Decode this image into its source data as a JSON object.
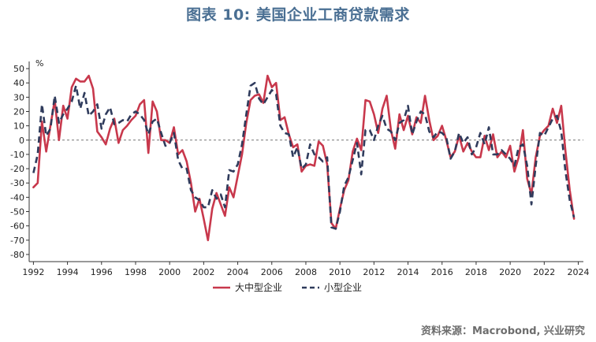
{
  "title": "图表 10: 美国企业工商贷款需求",
  "source": "资料来源：Macrobond, 兴业研究",
  "chart_data": {
    "type": "line",
    "title": "图表 10: 美国企业工商贷款需求",
    "ylabel": "%",
    "ylim": [
      -85,
      55
    ],
    "yticks": [
      50,
      40,
      30,
      20,
      10,
      0,
      -10,
      -20,
      -30,
      -40,
      -50,
      -60,
      -70,
      -80
    ],
    "xlim": [
      1991.75,
      2024.3
    ],
    "xticks": [
      1992,
      1994,
      1996,
      1998,
      2000,
      2002,
      2004,
      2006,
      2008,
      2010,
      2012,
      2014,
      2016,
      2018,
      2020,
      2022,
      2024
    ],
    "zero_line": true,
    "legend_position": "bottom-center",
    "series": [
      {
        "name": "大中型企业",
        "color": "#c8384c",
        "style": "solid",
        "points": [
          [
            1992.0,
            -33
          ],
          [
            1992.25,
            -30
          ],
          [
            1992.5,
            13
          ],
          [
            1992.75,
            -8
          ],
          [
            1993.0,
            10
          ],
          [
            1993.25,
            28
          ],
          [
            1993.5,
            0
          ],
          [
            1993.75,
            24
          ],
          [
            1994.0,
            15
          ],
          [
            1994.25,
            37
          ],
          [
            1994.5,
            43
          ],
          [
            1994.75,
            41
          ],
          [
            1995.0,
            41
          ],
          [
            1995.25,
            45
          ],
          [
            1995.5,
            36
          ],
          [
            1995.75,
            6
          ],
          [
            1996.0,
            2
          ],
          [
            1996.25,
            -3
          ],
          [
            1996.5,
            8
          ],
          [
            1996.75,
            15
          ],
          [
            1997.0,
            -2
          ],
          [
            1997.25,
            7
          ],
          [
            1997.5,
            10
          ],
          [
            1997.75,
            14
          ],
          [
            1998.0,
            17
          ],
          [
            1998.25,
            25
          ],
          [
            1998.5,
            28
          ],
          [
            1998.75,
            -9
          ],
          [
            1999.0,
            27
          ],
          [
            1999.25,
            20
          ],
          [
            1999.5,
            0
          ],
          [
            1999.75,
            0
          ],
          [
            2000.0,
            -2
          ],
          [
            2000.25,
            9
          ],
          [
            2000.5,
            -10
          ],
          [
            2000.75,
            -7
          ],
          [
            2001.0,
            -15
          ],
          [
            2001.25,
            -30
          ],
          [
            2001.5,
            -50
          ],
          [
            2001.75,
            -41
          ],
          [
            2002.0,
            -55
          ],
          [
            2002.25,
            -70
          ],
          [
            2002.5,
            -48
          ],
          [
            2002.75,
            -37
          ],
          [
            2003.0,
            -45
          ],
          [
            2003.25,
            -53
          ],
          [
            2003.5,
            -33
          ],
          [
            2003.75,
            -40
          ],
          [
            2004.0,
            -25
          ],
          [
            2004.25,
            -10
          ],
          [
            2004.5,
            12
          ],
          [
            2004.75,
            28
          ],
          [
            2005.0,
            31
          ],
          [
            2005.25,
            32
          ],
          [
            2005.5,
            26
          ],
          [
            2005.75,
            45
          ],
          [
            2006.0,
            37
          ],
          [
            2006.25,
            40
          ],
          [
            2006.5,
            14
          ],
          [
            2006.75,
            16
          ],
          [
            2007.0,
            4
          ],
          [
            2007.25,
            -5
          ],
          [
            2007.5,
            -3
          ],
          [
            2007.75,
            -22
          ],
          [
            2008.0,
            -18
          ],
          [
            2008.25,
            -17
          ],
          [
            2008.5,
            -18
          ],
          [
            2008.75,
            -1
          ],
          [
            2009.0,
            -4
          ],
          [
            2009.25,
            -17
          ],
          [
            2009.5,
            -58
          ],
          [
            2009.75,
            -62
          ],
          [
            2010.0,
            -48
          ],
          [
            2010.25,
            -35
          ],
          [
            2010.5,
            -28
          ],
          [
            2010.75,
            -8
          ],
          [
            2011.0,
            1
          ],
          [
            2011.25,
            -7
          ],
          [
            2011.5,
            28
          ],
          [
            2011.75,
            27
          ],
          [
            2012.0,
            18
          ],
          [
            2012.25,
            5
          ],
          [
            2012.5,
            22
          ],
          [
            2012.75,
            31
          ],
          [
            2013.0,
            7
          ],
          [
            2013.25,
            -6
          ],
          [
            2013.5,
            18
          ],
          [
            2013.75,
            7
          ],
          [
            2014.0,
            17
          ],
          [
            2014.25,
            4
          ],
          [
            2014.5,
            16
          ],
          [
            2014.75,
            12
          ],
          [
            2015.0,
            31
          ],
          [
            2015.25,
            14
          ],
          [
            2015.5,
            0
          ],
          [
            2015.75,
            3
          ],
          [
            2016.0,
            10
          ],
          [
            2016.25,
            0
          ],
          [
            2016.5,
            -12
          ],
          [
            2016.75,
            -8
          ],
          [
            2017.0,
            3
          ],
          [
            2017.25,
            -8
          ],
          [
            2017.5,
            -2
          ],
          [
            2017.75,
            -8
          ],
          [
            2018.0,
            -12
          ],
          [
            2018.25,
            -12
          ],
          [
            2018.5,
            3
          ],
          [
            2018.75,
            -7
          ],
          [
            2019.0,
            4
          ],
          [
            2019.25,
            -12
          ],
          [
            2019.5,
            -8
          ],
          [
            2019.75,
            -12
          ],
          [
            2020.0,
            -4
          ],
          [
            2020.25,
            -22
          ],
          [
            2020.5,
            -12
          ],
          [
            2020.75,
            7
          ],
          [
            2021.0,
            -27
          ],
          [
            2021.25,
            -38
          ],
          [
            2021.5,
            -12
          ],
          [
            2021.75,
            3
          ],
          [
            2022.0,
            7
          ],
          [
            2022.25,
            10
          ],
          [
            2022.5,
            22
          ],
          [
            2022.75,
            12
          ],
          [
            2023.0,
            24
          ],
          [
            2023.25,
            -8
          ],
          [
            2023.5,
            -35
          ],
          [
            2023.75,
            -55
          ]
        ]
      },
      {
        "name": "小型企业",
        "color": "#2f3b5c",
        "style": "dashed",
        "points": [
          [
            1992.0,
            -23
          ],
          [
            1992.25,
            -10
          ],
          [
            1992.5,
            25
          ],
          [
            1992.75,
            3
          ],
          [
            1993.0,
            8
          ],
          [
            1993.25,
            31
          ],
          [
            1993.5,
            12
          ],
          [
            1993.75,
            18
          ],
          [
            1994.0,
            22
          ],
          [
            1994.25,
            27
          ],
          [
            1994.5,
            38
          ],
          [
            1994.75,
            22
          ],
          [
            1995.0,
            33
          ],
          [
            1995.25,
            17
          ],
          [
            1995.5,
            20
          ],
          [
            1995.75,
            25
          ],
          [
            1996.0,
            8
          ],
          [
            1996.25,
            18
          ],
          [
            1996.5,
            23
          ],
          [
            1996.75,
            11
          ],
          [
            1997.0,
            12
          ],
          [
            1997.25,
            14
          ],
          [
            1997.5,
            13
          ],
          [
            1997.75,
            18
          ],
          [
            1998.0,
            20
          ],
          [
            1998.25,
            18
          ],
          [
            1998.5,
            14
          ],
          [
            1998.75,
            4
          ],
          [
            1999.0,
            13
          ],
          [
            1999.25,
            15
          ],
          [
            1999.5,
            5
          ],
          [
            1999.75,
            -4
          ],
          [
            2000.0,
            -2
          ],
          [
            2000.25,
            5
          ],
          [
            2000.5,
            -14
          ],
          [
            2000.75,
            -20
          ],
          [
            2001.0,
            -20
          ],
          [
            2001.25,
            -35
          ],
          [
            2001.5,
            -40
          ],
          [
            2001.75,
            -42
          ],
          [
            2002.0,
            -47
          ],
          [
            2002.25,
            -47
          ],
          [
            2002.5,
            -35
          ],
          [
            2002.75,
            -41
          ],
          [
            2003.0,
            -38
          ],
          [
            2003.25,
            -47
          ],
          [
            2003.5,
            -21
          ],
          [
            2003.75,
            -22
          ],
          [
            2004.0,
            -17
          ],
          [
            2004.25,
            -3
          ],
          [
            2004.5,
            18
          ],
          [
            2004.75,
            38
          ],
          [
            2005.0,
            40
          ],
          [
            2005.25,
            29
          ],
          [
            2005.5,
            25
          ],
          [
            2005.75,
            30
          ],
          [
            2006.0,
            35
          ],
          [
            2006.25,
            32
          ],
          [
            2006.5,
            10
          ],
          [
            2006.75,
            5
          ],
          [
            2007.0,
            4
          ],
          [
            2007.25,
            -12
          ],
          [
            2007.5,
            -5
          ],
          [
            2007.75,
            -20
          ],
          [
            2008.0,
            -17
          ],
          [
            2008.25,
            -3
          ],
          [
            2008.5,
            -10
          ],
          [
            2008.75,
            -12
          ],
          [
            2009.0,
            -15
          ],
          [
            2009.25,
            -12
          ],
          [
            2009.5,
            -61
          ],
          [
            2009.75,
            -62
          ],
          [
            2010.0,
            -50
          ],
          [
            2010.25,
            -32
          ],
          [
            2010.5,
            -26
          ],
          [
            2010.75,
            -14
          ],
          [
            2011.0,
            -2
          ],
          [
            2011.25,
            -24
          ],
          [
            2011.5,
            7
          ],
          [
            2011.75,
            7
          ],
          [
            2012.0,
            0
          ],
          [
            2012.25,
            10
          ],
          [
            2012.5,
            17
          ],
          [
            2012.75,
            8
          ],
          [
            2013.0,
            6
          ],
          [
            2013.25,
            0
          ],
          [
            2013.5,
            12
          ],
          [
            2013.75,
            14
          ],
          [
            2014.0,
            24
          ],
          [
            2014.25,
            4
          ],
          [
            2014.5,
            13
          ],
          [
            2014.75,
            20
          ],
          [
            2015.0,
            18
          ],
          [
            2015.25,
            6
          ],
          [
            2015.5,
            2
          ],
          [
            2015.75,
            6
          ],
          [
            2016.0,
            5
          ],
          [
            2016.25,
            2
          ],
          [
            2016.5,
            -13
          ],
          [
            2016.75,
            -8
          ],
          [
            2017.0,
            5
          ],
          [
            2017.25,
            -2
          ],
          [
            2017.5,
            2
          ],
          [
            2017.75,
            -10
          ],
          [
            2018.0,
            -5
          ],
          [
            2018.25,
            5
          ],
          [
            2018.5,
            -3
          ],
          [
            2018.75,
            9
          ],
          [
            2019.0,
            -10
          ],
          [
            2019.25,
            -10
          ],
          [
            2019.5,
            -7
          ],
          [
            2019.75,
            -10
          ],
          [
            2020.0,
            -13
          ],
          [
            2020.25,
            -18
          ],
          [
            2020.5,
            -5
          ],
          [
            2020.75,
            -3
          ],
          [
            2021.0,
            -18
          ],
          [
            2021.25,
            -45
          ],
          [
            2021.5,
            -18
          ],
          [
            2021.75,
            5
          ],
          [
            2022.0,
            3
          ],
          [
            2022.25,
            9
          ],
          [
            2022.5,
            15
          ],
          [
            2022.75,
            17
          ],
          [
            2023.0,
            6
          ],
          [
            2023.25,
            -22
          ],
          [
            2023.5,
            -42
          ],
          [
            2023.75,
            -54
          ]
        ]
      }
    ]
  }
}
